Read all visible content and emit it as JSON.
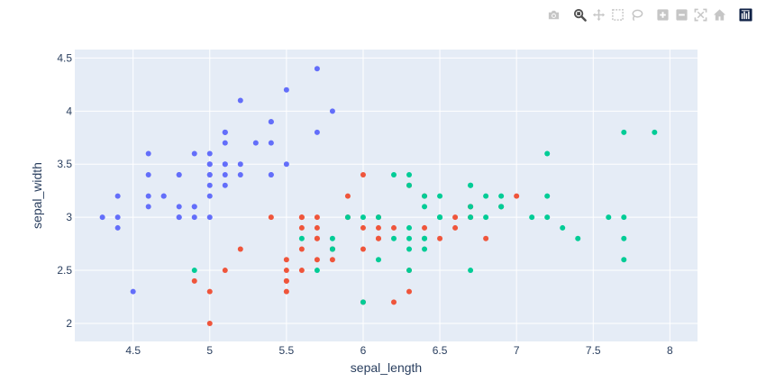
{
  "modebar": {
    "buttons": [
      {
        "icon": "camera-icon",
        "title": "Download plot as a png"
      },
      {
        "icon": "zoom-icon",
        "title": "Zoom"
      },
      {
        "icon": "pan-icon",
        "title": "Pan"
      },
      {
        "icon": "box-select-icon",
        "title": "Box Select"
      },
      {
        "icon": "lasso-select-icon",
        "title": "Lasso Select"
      },
      {
        "icon": "zoom-in-icon",
        "title": "Zoom in"
      },
      {
        "icon": "zoom-out-icon",
        "title": "Zoom out"
      },
      {
        "icon": "autoscale-icon",
        "title": "Autoscale"
      },
      {
        "icon": "reset-axes-icon",
        "title": "Reset axes"
      },
      {
        "icon": "plotly-logo-icon",
        "title": "Produced with Plotly"
      }
    ],
    "colors": {
      "icon": "#c6c6c6",
      "active": "#505050",
      "logo": "#0f2146"
    }
  },
  "chart_data": {
    "type": "scatter",
    "xlabel": "sepal_length",
    "ylabel": "sepal_width",
    "xlim": [
      4.12,
      8.18
    ],
    "ylim": [
      1.83,
      4.58
    ],
    "xticks": [
      4.5,
      5,
      5.5,
      6,
      6.5,
      7,
      7.5,
      8
    ],
    "xtick_labels": [
      "4.5",
      "5",
      "5.5",
      "6",
      "6.5",
      "7",
      "7.5",
      "8"
    ],
    "yticks": [
      2,
      2.5,
      3,
      3.5,
      4,
      4.5
    ],
    "ytick_labels": [
      "2",
      "2.5",
      "3",
      "3.5",
      "4",
      "4.5"
    ],
    "grid": true,
    "legend": false,
    "plot_bgcolor": "#e5ecf6",
    "series": [
      {
        "color": "#636efa",
        "points": [
          [
            5.1,
            3.5
          ],
          [
            4.9,
            3.0
          ],
          [
            4.7,
            3.2
          ],
          [
            4.6,
            3.1
          ],
          [
            5.0,
            3.6
          ],
          [
            5.4,
            3.9
          ],
          [
            4.6,
            3.4
          ],
          [
            5.0,
            3.4
          ],
          [
            4.4,
            2.9
          ],
          [
            4.9,
            3.1
          ],
          [
            5.4,
            3.7
          ],
          [
            4.8,
            3.4
          ],
          [
            4.8,
            3.0
          ],
          [
            4.3,
            3.0
          ],
          [
            5.8,
            4.0
          ],
          [
            5.7,
            4.4
          ],
          [
            5.4,
            3.9
          ],
          [
            5.1,
            3.5
          ],
          [
            5.7,
            3.8
          ],
          [
            5.1,
            3.8
          ],
          [
            5.4,
            3.4
          ],
          [
            5.1,
            3.7
          ],
          [
            4.6,
            3.6
          ],
          [
            5.1,
            3.3
          ],
          [
            4.8,
            3.4
          ],
          [
            5.0,
            3.0
          ],
          [
            5.0,
            3.4
          ],
          [
            5.2,
            3.5
          ],
          [
            5.2,
            3.4
          ],
          [
            4.7,
            3.2
          ],
          [
            4.8,
            3.1
          ],
          [
            5.4,
            3.4
          ],
          [
            5.2,
            4.1
          ],
          [
            5.5,
            4.2
          ],
          [
            4.9,
            3.1
          ],
          [
            5.0,
            3.2
          ],
          [
            5.5,
            3.5
          ],
          [
            4.9,
            3.6
          ],
          [
            4.4,
            3.0
          ],
          [
            5.1,
            3.4
          ],
          [
            5.0,
            3.5
          ],
          [
            4.5,
            2.3
          ],
          [
            4.4,
            3.2
          ],
          [
            5.0,
            3.5
          ],
          [
            5.1,
            3.8
          ],
          [
            4.8,
            3.0
          ],
          [
            5.1,
            3.8
          ],
          [
            4.6,
            3.2
          ],
          [
            5.3,
            3.7
          ],
          [
            5.0,
            3.3
          ]
        ]
      },
      {
        "color": "#EF553B",
        "points": [
          [
            7.0,
            3.2
          ],
          [
            6.4,
            3.2
          ],
          [
            6.9,
            3.1
          ],
          [
            5.5,
            2.3
          ],
          [
            6.5,
            2.8
          ],
          [
            5.7,
            2.8
          ],
          [
            6.3,
            3.3
          ],
          [
            4.9,
            2.4
          ],
          [
            6.6,
            2.9
          ],
          [
            5.2,
            2.7
          ],
          [
            5.0,
            2.0
          ],
          [
            5.9,
            3.0
          ],
          [
            6.0,
            2.2
          ],
          [
            6.1,
            2.9
          ],
          [
            5.6,
            2.9
          ],
          [
            6.7,
            3.1
          ],
          [
            5.6,
            3.0
          ],
          [
            5.8,
            2.7
          ],
          [
            6.2,
            2.2
          ],
          [
            5.6,
            2.5
          ],
          [
            5.9,
            3.2
          ],
          [
            6.1,
            2.8
          ],
          [
            6.3,
            2.5
          ],
          [
            6.1,
            2.8
          ],
          [
            6.4,
            2.9
          ],
          [
            6.6,
            3.0
          ],
          [
            6.8,
            2.8
          ],
          [
            6.7,
            3.0
          ],
          [
            6.0,
            2.9
          ],
          [
            5.7,
            2.6
          ],
          [
            5.5,
            2.4
          ],
          [
            5.5,
            2.4
          ],
          [
            5.8,
            2.7
          ],
          [
            6.0,
            2.7
          ],
          [
            5.4,
            3.0
          ],
          [
            6.0,
            3.4
          ],
          [
            6.7,
            3.1
          ],
          [
            6.3,
            2.3
          ],
          [
            5.6,
            3.0
          ],
          [
            5.5,
            2.5
          ],
          [
            5.5,
            2.6
          ],
          [
            6.1,
            3.0
          ],
          [
            5.8,
            2.6
          ],
          [
            5.0,
            2.3
          ],
          [
            5.6,
            2.7
          ],
          [
            5.7,
            3.0
          ],
          [
            5.7,
            2.9
          ],
          [
            6.2,
            2.9
          ],
          [
            5.1,
            2.5
          ],
          [
            5.7,
            2.8
          ]
        ]
      },
      {
        "color": "#00cc96",
        "points": [
          [
            6.3,
            3.3
          ],
          [
            5.8,
            2.7
          ],
          [
            7.1,
            3.0
          ],
          [
            6.3,
            2.9
          ],
          [
            6.5,
            3.0
          ],
          [
            7.6,
            3.0
          ],
          [
            4.9,
            2.5
          ],
          [
            7.3,
            2.9
          ],
          [
            6.7,
            2.5
          ],
          [
            7.2,
            3.6
          ],
          [
            6.5,
            3.2
          ],
          [
            6.4,
            2.7
          ],
          [
            6.8,
            3.0
          ],
          [
            5.7,
            2.5
          ],
          [
            5.8,
            2.8
          ],
          [
            6.4,
            3.2
          ],
          [
            6.5,
            3.0
          ],
          [
            7.7,
            3.8
          ],
          [
            7.7,
            2.6
          ],
          [
            6.0,
            2.2
          ],
          [
            6.9,
            3.2
          ],
          [
            5.6,
            2.8
          ],
          [
            7.7,
            2.8
          ],
          [
            6.3,
            2.7
          ],
          [
            6.7,
            3.3
          ],
          [
            7.2,
            3.2
          ],
          [
            6.2,
            2.8
          ],
          [
            6.1,
            3.0
          ],
          [
            6.4,
            2.8
          ],
          [
            7.2,
            3.0
          ],
          [
            7.4,
            2.8
          ],
          [
            7.9,
            3.8
          ],
          [
            6.4,
            2.8
          ],
          [
            6.3,
            2.8
          ],
          [
            6.1,
            2.6
          ],
          [
            7.7,
            3.0
          ],
          [
            6.3,
            3.4
          ],
          [
            6.4,
            3.1
          ],
          [
            6.0,
            3.0
          ],
          [
            6.9,
            3.1
          ],
          [
            6.7,
            3.1
          ],
          [
            6.9,
            3.1
          ],
          [
            5.8,
            2.7
          ],
          [
            6.8,
            3.2
          ],
          [
            6.7,
            3.3
          ],
          [
            6.7,
            3.0
          ],
          [
            6.3,
            2.5
          ],
          [
            6.5,
            3.0
          ],
          [
            6.2,
            3.4
          ],
          [
            5.9,
            3.0
          ]
        ]
      }
    ]
  }
}
